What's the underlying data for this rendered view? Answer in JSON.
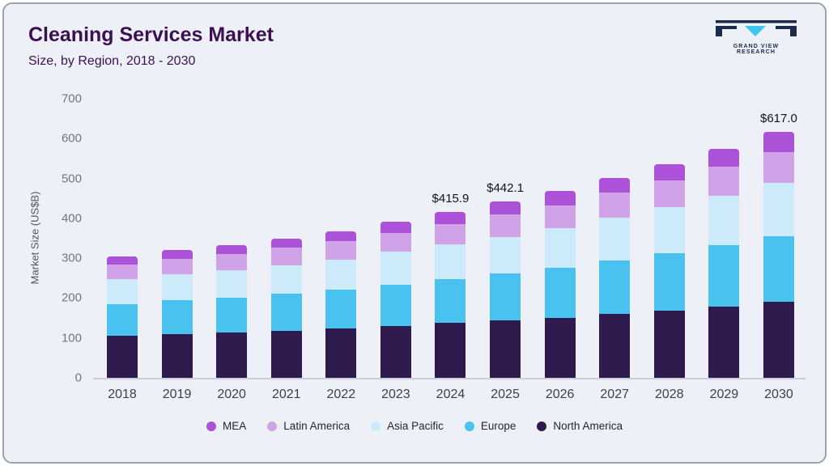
{
  "header": {
    "title": "Cleaning Services Market",
    "subtitle": "Size, by Region, 2018 - 2030"
  },
  "logo": {
    "text": "GRAND VIEW RESEARCH",
    "navy": "#1c2b4a",
    "cyan": "#3ec6f0"
  },
  "colors": {
    "background": "#edf1f7",
    "title_text": "#3b1053",
    "axis_text": "#6d7683"
  },
  "chart_data": {
    "type": "bar",
    "stacked": true,
    "title": "Cleaning Services Market Size, by Region, 2018 - 2030",
    "xlabel": "",
    "ylabel": "Market Size (US$B)",
    "ylim": [
      0,
      700
    ],
    "yticks": [
      0,
      100,
      200,
      300,
      400,
      500,
      600,
      700
    ],
    "grid": false,
    "legend_position": "bottom",
    "categories": [
      "2018",
      "2019",
      "2020",
      "2021",
      "2022",
      "2023",
      "2024",
      "2025",
      "2026",
      "2027",
      "2028",
      "2029",
      "2030"
    ],
    "series": [
      {
        "name": "North America",
        "color": "#2f1a4e",
        "values": [
          105,
          109,
          113,
          118,
          123,
          130,
          137,
          144,
          151,
          160,
          169,
          178,
          190
        ]
      },
      {
        "name": "Europe",
        "color": "#4ac2f0",
        "values": [
          80,
          85,
          88,
          93,
          98,
          104,
          110,
          117,
          125,
          134,
          144,
          155,
          166
        ]
      },
      {
        "name": "Asia Pacific",
        "color": "#cdeafb",
        "values": [
          62,
          65,
          68,
          72,
          76,
          82,
          87,
          93,
          99,
          107,
          115,
          124,
          133
        ]
      },
      {
        "name": "Latin America",
        "color": "#d0a3e8",
        "values": [
          37,
          39,
          41,
          43,
          45,
          48,
          51,
          55,
          58,
          63,
          67,
          72,
          78
        ]
      },
      {
        "name": "MEA",
        "color": "#ac52d8",
        "values": [
          21,
          22,
          23,
          24,
          26,
          28,
          30.9,
          33.1,
          35,
          38,
          41,
          45,
          50
        ]
      }
    ],
    "totals": [
      305,
      320,
      333,
      350,
      368,
      392,
      415.9,
      442.1,
      468,
      502,
      536,
      574,
      617
    ],
    "annotations": [
      {
        "category": "2024",
        "text": "$415.9"
      },
      {
        "category": "2025",
        "text": "$442.1"
      },
      {
        "category": "2030",
        "text": "$617.0"
      }
    ],
    "legend_order": [
      "MEA",
      "Latin America",
      "Asia Pacific",
      "Europe",
      "North America"
    ]
  }
}
